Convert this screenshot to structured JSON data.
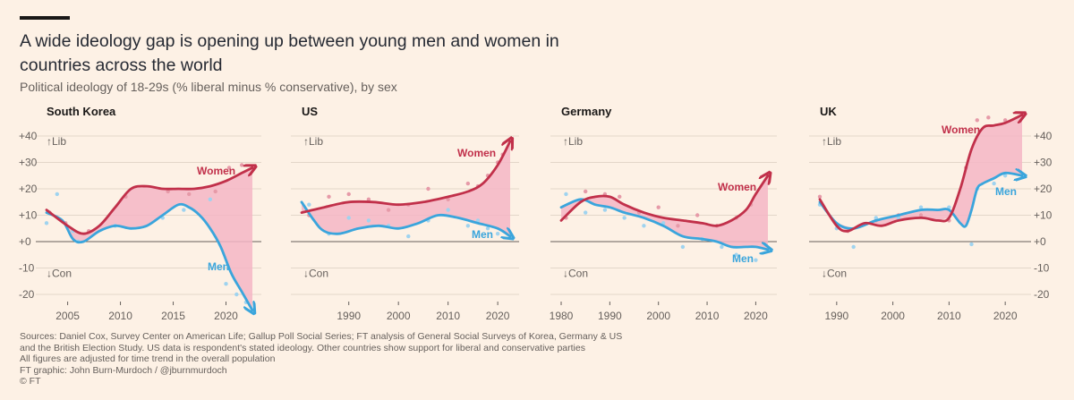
{
  "title": "A wide ideology gap is opening up between young men and women in countries across the world",
  "subtitle": "Political ideology of 18-29s (% liberal minus % conservative), by sex",
  "footer": {
    "sources": "Sources: Daniel Cox, Survey Center on American Life; Gallup Poll Social Series; FT analysis of General Social Surveys of Korea, Germany & US",
    "sources2": "and the British Election Study. US data is respondent's stated ideology. Other countries show support for liberal and conservative parties",
    "note": "All figures are adjusted for time trend in the overall population",
    "credit": "FT graphic: John Burn-Murdoch / @jburnmurdoch",
    "copyright": "© FT"
  },
  "colors": {
    "women": "#c1304a",
    "men": "#3aa5dc",
    "gap_fill": "#f5b6c5",
    "grid": "#e3d6c9",
    "zero": "#66605c"
  },
  "chart_data": [
    {
      "type": "line",
      "title": "South Korea",
      "ylim": [
        -25,
        45
      ],
      "yticks": [
        40,
        30,
        20,
        10,
        0,
        -10,
        -20
      ],
      "ytick_labels": [
        "+40",
        "+30",
        "+20",
        "+10",
        "+0",
        "-10",
        "-20"
      ],
      "y_axis_side": "left",
      "y_top_note": "↑Lib",
      "y_bottom_note": "↓Con",
      "xlim": [
        2003,
        2022.5
      ],
      "xticks": [
        2005,
        2010,
        2015,
        2020
      ],
      "series": [
        {
          "name": "Women",
          "x": [
            2003,
            2005,
            2006.5,
            2008,
            2009.5,
            2011,
            2012.5,
            2014,
            2015.5,
            2017,
            2018.5,
            2020,
            2021.5,
            2022.5
          ],
          "values": [
            12,
            6,
            3,
            6,
            13,
            20,
            21,
            20,
            20,
            20,
            21,
            23,
            26,
            28
          ]
        },
        {
          "name": "Men",
          "x": [
            2003,
            2004.5,
            2005.5,
            2006.5,
            2008,
            2009.5,
            2011,
            2012.5,
            2014,
            2015.5,
            2016.5,
            2017.5,
            2018.5,
            2019.5,
            2020.5,
            2021.5,
            2022.5
          ],
          "values": [
            11,
            8,
            1,
            0,
            4,
            6,
            5,
            6,
            10,
            14,
            13,
            10,
            5,
            -2,
            -12,
            -19,
            -26
          ]
        }
      ],
      "scatter": {
        "women": [
          [
            2003.3,
            11
          ],
          [
            2004.8,
            7
          ],
          [
            2007,
            4
          ],
          [
            2010.5,
            17
          ],
          [
            2014.5,
            19
          ],
          [
            2016.5,
            18
          ],
          [
            2019,
            19
          ],
          [
            2020.3,
            28
          ],
          [
            2021.5,
            29
          ]
        ],
        "men": [
          [
            2003,
            7
          ],
          [
            2004,
            18
          ],
          [
            2005.5,
            4
          ],
          [
            2006,
            0
          ],
          [
            2009.5,
            6
          ],
          [
            2014,
            9
          ],
          [
            2016,
            12
          ],
          [
            2018.5,
            16
          ],
          [
            2020,
            -16
          ],
          [
            2021,
            -20
          ],
          [
            2021.9,
            -23
          ]
        ]
      }
    },
    {
      "type": "line",
      "title": "US",
      "ylim": [
        -25,
        45
      ],
      "yticks": [
        40,
        30,
        20,
        10,
        0,
        -10,
        -20
      ],
      "ytick_labels": [],
      "y_axis_side": "none",
      "y_top_note": "↑Lib",
      "y_bottom_note": "↓Con",
      "xlim": [
        1980.5,
        2022.5
      ],
      "xticks": [
        1990,
        2000,
        2010,
        2020
      ],
      "series": [
        {
          "name": "Women",
          "x": [
            1980.5,
            1985,
            1990,
            1995,
            2000,
            2005,
            2010,
            2014,
            2017,
            2020,
            2022.5
          ],
          "values": [
            11,
            13,
            15,
            15,
            14,
            15,
            17,
            19,
            22,
            29,
            38
          ]
        },
        {
          "name": "Men",
          "x": [
            1980.5,
            1983,
            1985,
            1988,
            1992,
            1996,
            2000,
            2004,
            2008,
            2012,
            2016,
            2020,
            2022.5
          ],
          "values": [
            15,
            8,
            4,
            3,
            5,
            6,
            5,
            7,
            10,
            9,
            7,
            5,
            2
          ]
        }
      ],
      "scatter": {
        "women": [
          [
            1982,
            10
          ],
          [
            1986,
            17
          ],
          [
            1990,
            18
          ],
          [
            1994,
            16
          ],
          [
            1998,
            12
          ],
          [
            2002,
            14
          ],
          [
            2006,
            20
          ],
          [
            2010,
            16
          ],
          [
            2014,
            22
          ],
          [
            2016,
            21
          ],
          [
            2018,
            25
          ],
          [
            2020,
            30
          ],
          [
            2021,
            33
          ]
        ],
        "men": [
          [
            1982,
            14
          ],
          [
            1986,
            3
          ],
          [
            1990,
            9
          ],
          [
            1994,
            8
          ],
          [
            1998,
            6
          ],
          [
            2002,
            2
          ],
          [
            2006,
            8
          ],
          [
            2010,
            12
          ],
          [
            2014,
            6
          ],
          [
            2016,
            8
          ],
          [
            2018,
            5
          ],
          [
            2020,
            3
          ]
        ]
      }
    },
    {
      "type": "line",
      "title": "Germany",
      "ylim": [
        -25,
        45
      ],
      "yticks": [
        40,
        30,
        20,
        10,
        0,
        -10,
        -20
      ],
      "ytick_labels": [],
      "y_axis_side": "none",
      "y_top_note": "↑Lib",
      "y_bottom_note": "↓Con",
      "xlim": [
        1980,
        2022.5
      ],
      "xticks": [
        1980,
        1990,
        2000,
        2010,
        2020
      ],
      "series": [
        {
          "name": "Women",
          "x": [
            1980,
            1984,
            1987,
            1990,
            1993,
            1997,
            2001,
            2005,
            2009,
            2012,
            2015,
            2018,
            2020,
            2022.5
          ],
          "values": [
            8,
            15,
            17,
            17,
            14,
            11,
            9,
            8,
            7,
            6,
            8,
            12,
            18,
            25
          ]
        },
        {
          "name": "Men",
          "x": [
            1980,
            1984,
            1987,
            1990,
            1993,
            1997,
            2001,
            2005,
            2009,
            2012,
            2015,
            2018,
            2020,
            2022.5
          ],
          "values": [
            13,
            16,
            14,
            13,
            11,
            9,
            6,
            2,
            1,
            0,
            -2,
            -2,
            -2,
            -3
          ]
        }
      ],
      "scatter": {
        "women": [
          [
            1981,
            9
          ],
          [
            1985,
            19
          ],
          [
            1989,
            18
          ],
          [
            1992,
            17
          ],
          [
            1996,
            11
          ],
          [
            2000,
            13
          ],
          [
            2004,
            6
          ],
          [
            2008,
            10
          ],
          [
            2012,
            6
          ],
          [
            2016,
            9
          ],
          [
            2019,
            14
          ]
        ],
        "men": [
          [
            1981,
            18
          ],
          [
            1985,
            11
          ],
          [
            1989,
            12
          ],
          [
            1993,
            9
          ],
          [
            1997,
            6
          ],
          [
            2001,
            7
          ],
          [
            2005,
            -2
          ],
          [
            2009,
            1
          ],
          [
            2013,
            -2
          ],
          [
            2016,
            -5
          ],
          [
            2020,
            -7
          ]
        ]
      }
    },
    {
      "type": "line",
      "title": "UK",
      "ylim": [
        -25,
        45
      ],
      "yticks": [
        40,
        30,
        20,
        10,
        0,
        -10,
        -20
      ],
      "ytick_labels": [
        "+40",
        "+30",
        "+20",
        "+10",
        "+0",
        "-10",
        "-20"
      ],
      "y_axis_side": "right",
      "y_top_note": "↑Lib",
      "y_bottom_note": "↓Con",
      "xlim": [
        1987,
        2023
      ],
      "xticks": [
        1990,
        2000,
        2010,
        2020
      ],
      "series": [
        {
          "name": "Women",
          "x": [
            1987,
            1990,
            1992,
            1995,
            1998,
            2001,
            2005,
            2008,
            2010,
            2012,
            2014,
            2016,
            2018,
            2020,
            2023
          ],
          "values": [
            16,
            6,
            4,
            7,
            6,
            8,
            9,
            8,
            9,
            20,
            35,
            43,
            44,
            45,
            48
          ]
        },
        {
          "name": "Men",
          "x": [
            1987,
            1990,
            1993,
            1997,
            2001,
            2005,
            2008,
            2010,
            2012,
            2013,
            2014,
            2015,
            2016,
            2018,
            2020,
            2023
          ],
          "values": [
            15,
            7,
            5,
            8,
            10,
            12,
            12,
            12,
            7,
            6,
            12,
            20,
            22,
            24,
            26,
            25
          ]
        }
      ],
      "scatter": {
        "women": [
          [
            1987,
            17
          ],
          [
            1992,
            4
          ],
          [
            1997,
            8
          ],
          [
            2001,
            10
          ],
          [
            2005,
            10
          ],
          [
            2010,
            8
          ],
          [
            2013,
            28
          ],
          [
            2015,
            46
          ],
          [
            2017,
            47
          ],
          [
            2020,
            46
          ]
        ],
        "men": [
          [
            1987,
            14
          ],
          [
            1990,
            5
          ],
          [
            1993,
            -2
          ],
          [
            1997,
            9
          ],
          [
            2001,
            9
          ],
          [
            2005,
            13
          ],
          [
            2010,
            13
          ],
          [
            2014,
            -1
          ],
          [
            2015,
            20
          ],
          [
            2018,
            22
          ],
          [
            2020,
            25
          ]
        ]
      }
    }
  ]
}
